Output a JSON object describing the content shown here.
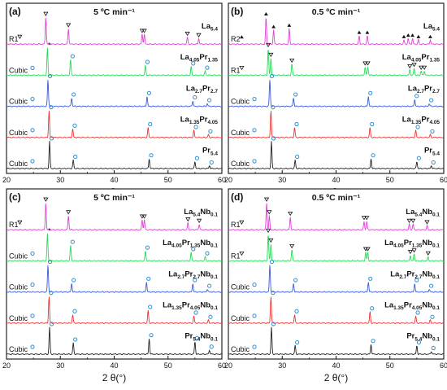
{
  "chart_data": [
    {
      "type": "line",
      "panel_label": "(a)",
      "annotation": "5 ºC min⁻¹",
      "xlabel": "2 θ(°)",
      "xlim": [
        20,
        60
      ],
      "xticks": [
        20,
        30,
        40,
        50,
        60
      ],
      "grid": false,
      "series": [
        {
          "name": "La5.4",
          "color": "#e23fd9",
          "phase_label": "R1",
          "peaks": [
            {
              "x": 27.3,
              "h": 0.95
            },
            {
              "x": 31.5,
              "h": 0.55
            },
            {
              "x": 45.2,
              "h": 0.35
            },
            {
              "x": 45.6,
              "h": 0.35
            },
            {
              "x": 53.6,
              "h": 0.25
            },
            {
              "x": 55.7,
              "h": 0.2
            }
          ]
        },
        {
          "name": "La4.05Pr1.35",
          "color": "#22dd55",
          "phase_label": "Cubic",
          "peaks": [
            {
              "x": 27.6,
              "h": 0.95
            },
            {
              "x": 31.9,
              "h": 0.55
            },
            {
              "x": 45.8,
              "h": 0.35
            },
            {
              "x": 54.3,
              "h": 0.3
            },
            {
              "x": 56.9,
              "h": 0.15
            }
          ]
        },
        {
          "name": "La2.7Pr2.7",
          "color": "#3a5ad9",
          "phase_label": "Cubic",
          "peaks": [
            {
              "x": 27.7,
              "h": 0.95
            },
            {
              "x": 32.1,
              "h": 0.3
            },
            {
              "x": 46.1,
              "h": 0.35
            },
            {
              "x": 54.6,
              "h": 0.2
            },
            {
              "x": 57.3,
              "h": 0.1
            }
          ]
        },
        {
          "name": "La1.35Pr4.05",
          "color": "#ee3333",
          "phase_label": "Cubic",
          "peaks": [
            {
              "x": 27.9,
              "h": 0.95
            },
            {
              "x": 32.3,
              "h": 0.3
            },
            {
              "x": 46.3,
              "h": 0.35
            },
            {
              "x": 54.8,
              "h": 0.25
            },
            {
              "x": 57.5,
              "h": 0.1
            }
          ]
        },
        {
          "name": "Pr5.4",
          "color": "#222222",
          "phase_label": "Cubic",
          "peaks": [
            {
              "x": 28.0,
              "h": 0.95
            },
            {
              "x": 32.4,
              "h": 0.3
            },
            {
              "x": 46.5,
              "h": 0.35
            },
            {
              "x": 55.0,
              "h": 0.25
            },
            {
              "x": 57.7,
              "h": 0.1
            }
          ]
        }
      ]
    },
    {
      "type": "line",
      "panel_label": "(b)",
      "annotation": "0.5 ºC min⁻¹",
      "xlabel": "2 θ(°)",
      "xlim": [
        20,
        60
      ],
      "xticks": [
        20,
        30,
        40,
        50,
        60
      ],
      "grid": false,
      "series": [
        {
          "name": "La5.4",
          "color": "#e23fd9",
          "phase_label": "R2",
          "peaks": [
            {
              "x": 27.0,
              "h": 0.95
            },
            {
              "x": 28.4,
              "h": 0.5
            },
            {
              "x": 31.3,
              "h": 0.55
            },
            {
              "x": 44.3,
              "h": 0.3
            },
            {
              "x": 45.8,
              "h": 0.3
            },
            {
              "x": 52.6,
              "h": 0.15
            },
            {
              "x": 53.4,
              "h": 0.2
            },
            {
              "x": 54.2,
              "h": 0.2
            },
            {
              "x": 55.3,
              "h": 0.15
            },
            {
              "x": 57.5,
              "h": 0.15
            }
          ]
        },
        {
          "name": "La4.05Pr1.35",
          "color": "#22dd55",
          "phase_label": "R1",
          "peaks": [
            {
              "x": 27.4,
              "h": 0.95
            },
            {
              "x": 27.9,
              "h": 0.6
            },
            {
              "x": 31.8,
              "h": 0.4
            },
            {
              "x": 45.4,
              "h": 0.3
            },
            {
              "x": 45.9,
              "h": 0.3
            },
            {
              "x": 53.7,
              "h": 0.2
            },
            {
              "x": 54.5,
              "h": 0.25
            },
            {
              "x": 55.8,
              "h": 0.15
            },
            {
              "x": 56.4,
              "h": 0.15
            }
          ]
        },
        {
          "name": "La2.7Pr2.7",
          "color": "#3a5ad9",
          "phase_label": "Cubic",
          "peaks": [
            {
              "x": 27.7,
              "h": 0.95
            },
            {
              "x": 32.1,
              "h": 0.3
            },
            {
              "x": 46.0,
              "h": 0.35
            },
            {
              "x": 54.6,
              "h": 0.25
            },
            {
              "x": 57.3,
              "h": 0.1
            }
          ]
        },
        {
          "name": "La1.35Pr4.05",
          "color": "#ee3333",
          "phase_label": "Cubic",
          "peaks": [
            {
              "x": 27.9,
              "h": 0.95
            },
            {
              "x": 32.3,
              "h": 0.35
            },
            {
              "x": 46.3,
              "h": 0.35
            },
            {
              "x": 54.8,
              "h": 0.25
            },
            {
              "x": 57.5,
              "h": 0.1
            }
          ]
        },
        {
          "name": "Pr5.4",
          "color": "#222222",
          "phase_label": "Cubic",
          "peaks": [
            {
              "x": 28.0,
              "h": 0.95
            },
            {
              "x": 32.4,
              "h": 0.3
            },
            {
              "x": 46.5,
              "h": 0.35
            },
            {
              "x": 55.0,
              "h": 0.25
            },
            {
              "x": 57.7,
              "h": 0.1
            }
          ]
        }
      ]
    },
    {
      "type": "line",
      "panel_label": "(c)",
      "annotation": "5 ºC min⁻¹",
      "xlabel": "2 θ(°)",
      "xlim": [
        20,
        60
      ],
      "xticks": [
        20,
        30,
        40,
        50,
        60
      ],
      "grid": false,
      "series": [
        {
          "name": "La5.4Nb0.1",
          "color": "#e23fd9",
          "phase_label": "R1",
          "peaks": [
            {
              "x": 27.3,
              "h": 0.95
            },
            {
              "x": 31.5,
              "h": 0.5
            },
            {
              "x": 45.2,
              "h": 0.35
            },
            {
              "x": 45.6,
              "h": 0.35
            },
            {
              "x": 53.7,
              "h": 0.25
            },
            {
              "x": 55.8,
              "h": 0.2
            }
          ]
        },
        {
          "name": "La4.05Pr1.35Nb0.1",
          "color": "#22dd55",
          "phase_label": "Cubic",
          "peaks": [
            {
              "x": 27.6,
              "h": 0.95
            },
            {
              "x": 31.9,
              "h": 0.55
            },
            {
              "x": 45.8,
              "h": 0.35
            },
            {
              "x": 54.3,
              "h": 0.3
            },
            {
              "x": 56.9,
              "h": 0.15
            }
          ]
        },
        {
          "name": "La2.7Pr2.7Nb0.1",
          "color": "#3a5ad9",
          "phase_label": "Cubic",
          "peaks": [
            {
              "x": 27.7,
              "h": 0.95
            },
            {
              "x": 32.1,
              "h": 0.3
            },
            {
              "x": 46.0,
              "h": 0.35
            },
            {
              "x": 54.6,
              "h": 0.3
            },
            {
              "x": 57.3,
              "h": 0.1
            }
          ]
        },
        {
          "name": "La1.35Pr4.05Nb0.1",
          "color": "#ee3333",
          "phase_label": "Cubic",
          "peaks": [
            {
              "x": 27.9,
              "h": 0.95
            },
            {
              "x": 32.3,
              "h": 0.3
            },
            {
              "x": 46.3,
              "h": 0.45
            },
            {
              "x": 54.8,
              "h": 0.25
            },
            {
              "x": 57.5,
              "h": 0.1
            }
          ]
        },
        {
          "name": "Pr5.4Nb0.1",
          "color": "#222222",
          "phase_label": "Cubic",
          "peaks": [
            {
              "x": 28.0,
              "h": 0.95
            },
            {
              "x": 32.4,
              "h": 0.4
            },
            {
              "x": 46.5,
              "h": 0.55
            },
            {
              "x": 55.0,
              "h": 0.45
            },
            {
              "x": 57.7,
              "h": 0.15
            }
          ]
        }
      ]
    },
    {
      "type": "line",
      "panel_label": "(d)",
      "annotation": "0.5 ºC min⁻¹",
      "xlabel": "2 θ(°)",
      "xlim": [
        20,
        60
      ],
      "xticks": [
        20,
        30,
        40,
        50,
        60
      ],
      "grid": false,
      "series": [
        {
          "name": "La5.4Nb0.1",
          "color": "#e23fd9",
          "phase_label": "R1",
          "peaks": [
            {
              "x": 27.1,
              "h": 0.95
            },
            {
              "x": 27.6,
              "h": 0.5
            },
            {
              "x": 31.5,
              "h": 0.45
            },
            {
              "x": 45.2,
              "h": 0.3
            },
            {
              "x": 45.7,
              "h": 0.3
            },
            {
              "x": 53.6,
              "h": 0.2
            },
            {
              "x": 54.3,
              "h": 0.2
            },
            {
              "x": 56.9,
              "h": 0.15
            }
          ]
        },
        {
          "name": "La4.05Pr1.35Nb0.1",
          "color": "#22dd55",
          "phase_label": "R1",
          "peaks": [
            {
              "x": 27.4,
              "h": 0.95
            },
            {
              "x": 27.9,
              "h": 0.6
            },
            {
              "x": 31.8,
              "h": 0.4
            },
            {
              "x": 45.5,
              "h": 0.3
            },
            {
              "x": 45.9,
              "h": 0.3
            },
            {
              "x": 53.8,
              "h": 0.2
            },
            {
              "x": 54.5,
              "h": 0.25
            },
            {
              "x": 57.1,
              "h": 0.15
            }
          ]
        },
        {
          "name": "La2.7Pr2.7Nb0.1",
          "color": "#3a5ad9",
          "phase_label": "Cubic",
          "peaks": [
            {
              "x": 27.7,
              "h": 0.95
            },
            {
              "x": 32.1,
              "h": 0.3
            },
            {
              "x": 46.0,
              "h": 0.35
            },
            {
              "x": 54.6,
              "h": 0.3
            },
            {
              "x": 57.3,
              "h": 0.1
            }
          ]
        },
        {
          "name": "La1.35Pr4.05Nb0.1",
          "color": "#ee3333",
          "phase_label": "Cubic",
          "peaks": [
            {
              "x": 27.9,
              "h": 0.95
            },
            {
              "x": 32.3,
              "h": 0.3
            },
            {
              "x": 46.3,
              "h": 0.4
            },
            {
              "x": 54.8,
              "h": 0.25
            },
            {
              "x": 57.5,
              "h": 0.1
            }
          ]
        },
        {
          "name": "Pr5.4Nb0.1",
          "color": "#222222",
          "phase_label": "Cubic",
          "peaks": [
            {
              "x": 28.0,
              "h": 0.95
            },
            {
              "x": 32.4,
              "h": 0.3
            },
            {
              "x": 46.5,
              "h": 0.35
            },
            {
              "x": 55.0,
              "h": 0.3
            },
            {
              "x": 57.7,
              "h": 0.1
            }
          ]
        }
      ]
    }
  ]
}
